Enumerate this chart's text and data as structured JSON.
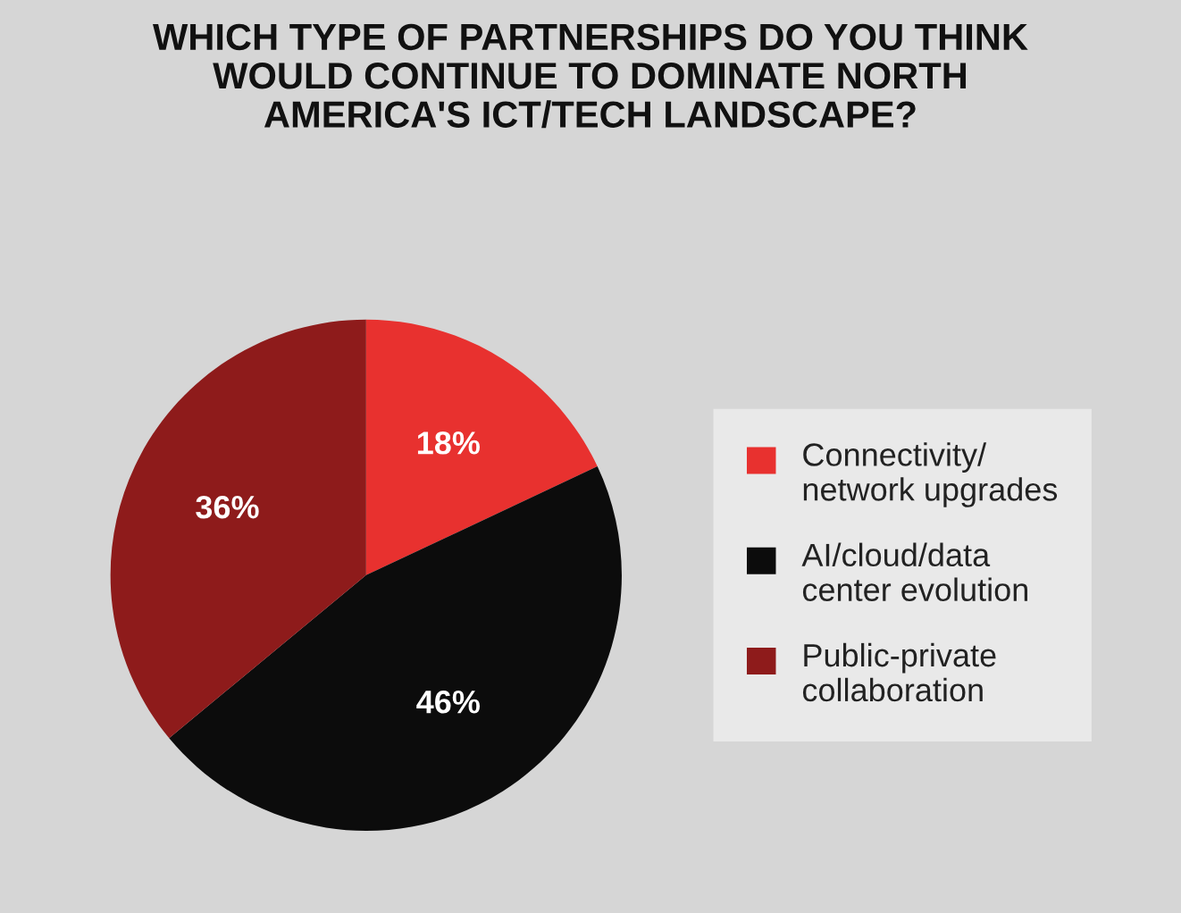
{
  "chart_data": {
    "type": "pie",
    "title": "WHICH TYPE OF PARTNERSHIPS DO YOU THINK\nWOULD CONTINUE TO DOMINATE NORTH\nAMERICA'S ICT/TECH LANDSCAPE?",
    "categories": [
      "Connectivity/\nnetwork upgrades",
      "AI/cloud/data\ncenter evolution",
      "Public-private\ncollaboration"
    ],
    "values": [
      18,
      46,
      36
    ],
    "colors": [
      "#e8312f",
      "#0c0c0c",
      "#8e1b1b"
    ],
    "value_labels": [
      "18%",
      "46%",
      "36%"
    ],
    "legend": "right"
  }
}
